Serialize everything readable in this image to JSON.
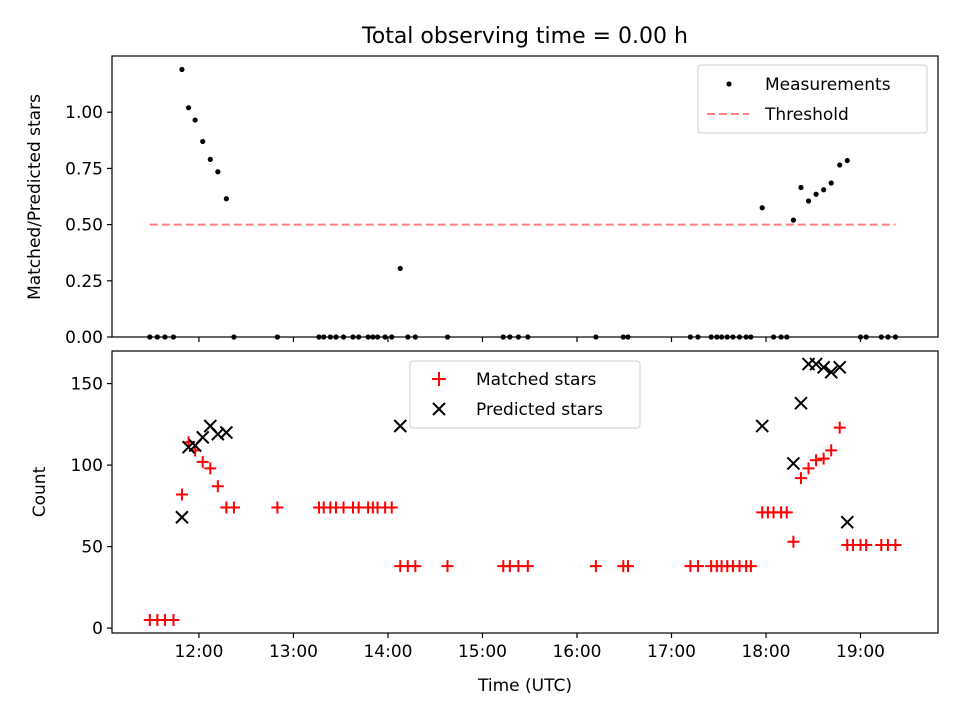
{
  "title": "Total observing time = 0.00 h",
  "chart_data": [
    {
      "type": "scatter",
      "ylabel": "Matched/Predicted stars",
      "xlabel": "",
      "xlim": [
        11.08,
        19.82
      ],
      "ylim": [
        0.0,
        1.25
      ],
      "yticks": [
        0.0,
        0.25,
        0.5,
        0.75,
        1.0
      ],
      "ytick_labels": [
        "0.00",
        "0.25",
        "0.50",
        "0.75",
        "1.00"
      ],
      "legend_position": "upper right",
      "legend": [
        "Measurements",
        "Threshold"
      ],
      "grid": false,
      "series": [
        {
          "name": "Measurements",
          "marker": "dot",
          "color": "#000000",
          "x": [
            11.48,
            11.56,
            11.64,
            11.73,
            11.82,
            11.89,
            11.96,
            12.04,
            12.12,
            12.2,
            12.29,
            12.37,
            12.83,
            13.27,
            13.32,
            13.39,
            13.45,
            13.53,
            13.63,
            13.69,
            13.79,
            13.84,
            13.89,
            13.97,
            14.04,
            14.13,
            14.21,
            14.29,
            14.63,
            15.22,
            15.29,
            15.38,
            15.48,
            16.2,
            16.49,
            16.54,
            17.2,
            17.28,
            17.42,
            17.48,
            17.53,
            17.59,
            17.65,
            17.72,
            17.79,
            17.84,
            17.96,
            18.08,
            18.16,
            18.22,
            18.29,
            18.37,
            18.45,
            18.53,
            18.61,
            18.69,
            18.78,
            18.86,
            19.0,
            19.06,
            19.22,
            19.29,
            19.37
          ],
          "y": [
            0.0,
            0.0,
            0.0,
            0.0,
            1.19,
            1.02,
            0.965,
            0.87,
            0.79,
            0.735,
            0.615,
            0.0,
            0.0,
            0.0,
            0.0,
            0.0,
            0.0,
            0.0,
            0.0,
            0.0,
            0.0,
            0.0,
            0.0,
            0.0,
            0.0,
            0.305,
            0.0,
            0.0,
            0.0,
            0.0,
            0.0,
            0.0,
            0.0,
            0.0,
            0.0,
            0.0,
            0.0,
            0.0,
            0.0,
            0.0,
            0.0,
            0.0,
            0.0,
            0.0,
            0.0,
            0.0,
            0.575,
            0.0,
            0.0,
            0.0,
            0.52,
            0.665,
            0.605,
            0.635,
            0.655,
            0.685,
            0.765,
            0.785,
            0.0,
            0.0,
            0.0,
            0.0,
            0.0
          ]
        },
        {
          "name": "Threshold",
          "style": "dashed",
          "color": "#ff7f7f",
          "x": [
            11.48,
            19.37
          ],
          "y": [
            0.5,
            0.5
          ]
        }
      ]
    },
    {
      "type": "scatter",
      "ylabel": "Count",
      "xlabel": "Time (UTC)",
      "xlim": [
        11.08,
        19.82
      ],
      "ylim": [
        -3,
        170
      ],
      "yticks": [
        0,
        50,
        100,
        150
      ],
      "ytick_labels": [
        "0",
        "50",
        "100",
        "150"
      ],
      "xticks": [
        12,
        13,
        14,
        15,
        16,
        17,
        18,
        19
      ],
      "xtick_labels": [
        "12:00",
        "13:00",
        "14:00",
        "15:00",
        "16:00",
        "17:00",
        "18:00",
        "19:00"
      ],
      "legend_position": "upper center",
      "legend": [
        "Matched stars",
        "Predicted stars"
      ],
      "grid": false,
      "series": [
        {
          "name": "Matched stars",
          "marker": "plus",
          "color": "#ff0000",
          "x": [
            11.48,
            11.56,
            11.64,
            11.73,
            11.82,
            11.89,
            11.96,
            12.04,
            12.12,
            12.2,
            12.29,
            12.37,
            12.83,
            13.27,
            13.32,
            13.39,
            13.45,
            13.53,
            13.63,
            13.69,
            13.79,
            13.84,
            13.89,
            13.97,
            14.04,
            14.13,
            14.21,
            14.29,
            14.63,
            15.22,
            15.29,
            15.38,
            15.48,
            16.2,
            16.49,
            16.54,
            17.2,
            17.28,
            17.42,
            17.48,
            17.53,
            17.59,
            17.65,
            17.72,
            17.79,
            17.84,
            17.96,
            18.02,
            18.08,
            18.16,
            18.22,
            18.29,
            18.37,
            18.45,
            18.53,
            18.61,
            18.69,
            18.78,
            18.86,
            18.92,
            19.0,
            19.06,
            19.22,
            19.29,
            19.37
          ],
          "y": [
            5,
            5,
            5,
            5,
            82,
            114,
            109,
            102,
            98,
            87,
            74,
            74,
            74,
            74,
            74,
            74,
            74,
            74,
            74,
            74,
            74,
            74,
            74,
            74,
            74,
            38,
            38,
            38,
            38,
            38,
            38,
            38,
            38,
            38,
            38,
            38,
            38,
            38,
            38,
            38,
            38,
            38,
            38,
            38,
            38,
            38,
            71,
            71,
            71,
            71,
            71,
            53,
            92,
            98,
            103,
            104,
            109,
            123,
            51,
            51,
            51,
            51,
            51,
            51,
            51
          ]
        },
        {
          "name": "Predicted stars",
          "marker": "x",
          "color": "#000000",
          "x": [
            11.82,
            11.89,
            11.96,
            12.04,
            12.12,
            12.2,
            12.29,
            14.13,
            17.96,
            18.29,
            18.37,
            18.45,
            18.53,
            18.61,
            18.69,
            18.78,
            18.86
          ],
          "y": [
            68,
            111,
            112,
            117,
            124,
            119,
            120,
            124,
            124,
            101,
            138,
            162,
            162,
            160,
            157,
            160,
            65
          ]
        }
      ]
    }
  ]
}
